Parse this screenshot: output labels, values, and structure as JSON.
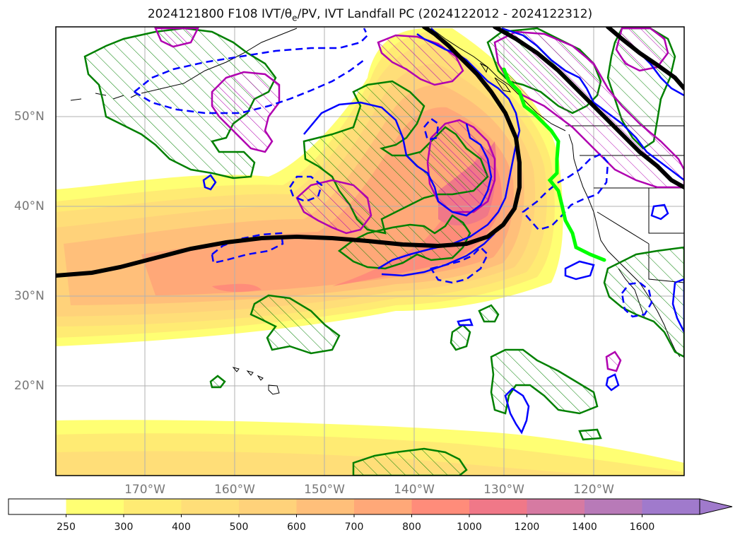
{
  "title": {
    "prefix": "2024121800 F108 IVT/θ",
    "subscript": "e",
    "suffix": "/PV, IVT Landfall PC (2024122012 - 2024122312)"
  },
  "map": {
    "latitude_labels": [
      "50°N",
      "40°N",
      "30°N",
      "20°N"
    ],
    "longitude_labels": [
      "170°W",
      "160°W",
      "150°W",
      "140°W",
      "130°W",
      "120°W"
    ],
    "extent": {
      "lon": [
        -180,
        -110
      ],
      "lat": [
        10,
        60
      ]
    },
    "grid": true
  },
  "colorbar": {
    "levels": [
      "250",
      "300",
      "400",
      "500",
      "600",
      "700",
      "800",
      "1000",
      "1200",
      "1400",
      "1600"
    ],
    "colors": [
      "#ffffff",
      "#ffff73",
      "#ffeb73",
      "#ffde78",
      "#ffd27a",
      "#ffbf7a",
      "#ffa878",
      "#ff8c7a",
      "#f07888",
      "#d67aa2",
      "#b87ab8",
      "#a07acc"
    ],
    "extend": "max"
  },
  "legend_colors": {
    "pv_hatched": "#008000",
    "theta_e_positive": "#b000b0",
    "theta_e_negative": "#0000ff",
    "landfall_track": "#000000",
    "landfall_coast": "#00ff00"
  }
}
